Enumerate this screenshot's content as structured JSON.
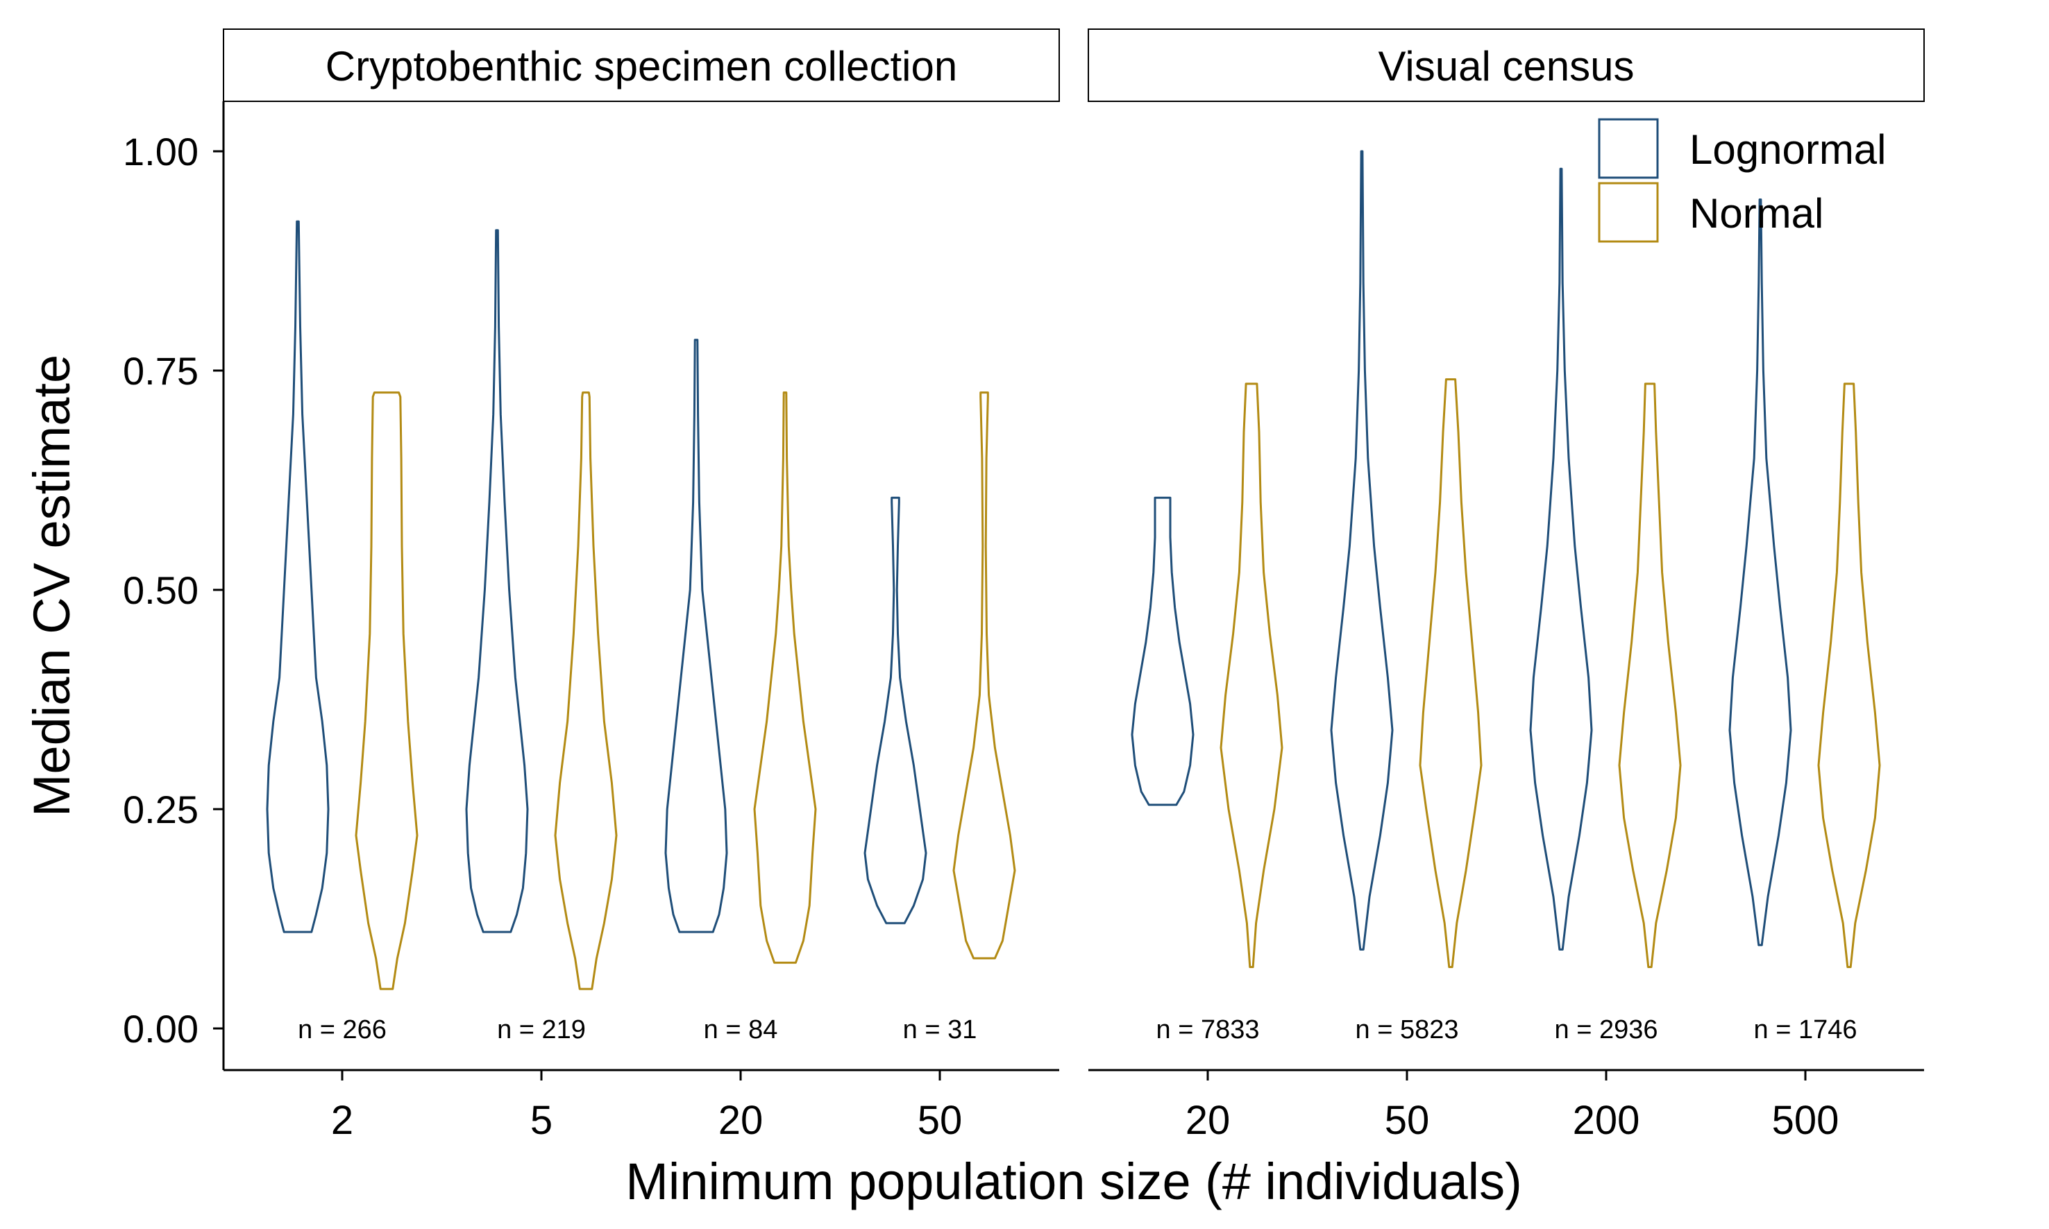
{
  "colors": {
    "lognormal": "#1f4e79",
    "normal": "#b38b14"
  },
  "chart_data": {
    "type": "violin",
    "ylabel": "Median CV estimate",
    "xlabel": "Minimum population size (# individuals)",
    "ylim": [
      0,
      1.05
    ],
    "yticks": [
      "0.00",
      "0.25",
      "0.50",
      "0.75",
      "1.00"
    ],
    "legend": {
      "position": "top-right",
      "entries": [
        "Lognormal",
        "Normal"
      ]
    },
    "grid": false,
    "panels": [
      {
        "title": "Cryptobenthic specimen collection",
        "categories": [
          "2",
          "5",
          "20",
          "50"
        ],
        "n_labels": [
          "n = 266",
          "n = 219",
          "n = 84",
          "n = 31"
        ],
        "violins": [
          {
            "series": "Lognormal",
            "category": "2",
            "min": 0.11,
            "max": 0.92,
            "profile": [
              [
                0.11,
                0.45
              ],
              [
                0.13,
                0.6
              ],
              [
                0.16,
                0.8
              ],
              [
                0.2,
                0.95
              ],
              [
                0.25,
                1.0
              ],
              [
                0.3,
                0.95
              ],
              [
                0.35,
                0.8
              ],
              [
                0.4,
                0.6
              ],
              [
                0.5,
                0.45
              ],
              [
                0.6,
                0.3
              ],
              [
                0.7,
                0.15
              ],
              [
                0.8,
                0.08
              ],
              [
                0.92,
                0.03
              ]
            ]
          },
          {
            "series": "Normal",
            "category": "2",
            "min": 0.045,
            "max": 0.725,
            "profile": [
              [
                0.045,
                0.2
              ],
              [
                0.08,
                0.35
              ],
              [
                0.12,
                0.6
              ],
              [
                0.18,
                0.85
              ],
              [
                0.22,
                1.0
              ],
              [
                0.28,
                0.85
              ],
              [
                0.35,
                0.7
              ],
              [
                0.45,
                0.55
              ],
              [
                0.55,
                0.5
              ],
              [
                0.65,
                0.48
              ],
              [
                0.72,
                0.45
              ],
              [
                0.725,
                0.4
              ]
            ]
          },
          {
            "series": "Lognormal",
            "category": "5",
            "min": 0.11,
            "max": 0.91,
            "profile": [
              [
                0.11,
                0.45
              ],
              [
                0.13,
                0.65
              ],
              [
                0.16,
                0.85
              ],
              [
                0.2,
                0.95
              ],
              [
                0.25,
                1.0
              ],
              [
                0.3,
                0.9
              ],
              [
                0.35,
                0.75
              ],
              [
                0.4,
                0.6
              ],
              [
                0.5,
                0.4
              ],
              [
                0.6,
                0.25
              ],
              [
                0.7,
                0.12
              ],
              [
                0.8,
                0.06
              ],
              [
                0.91,
                0.03
              ]
            ]
          },
          {
            "series": "Normal",
            "category": "5",
            "min": 0.045,
            "max": 0.725,
            "profile": [
              [
                0.045,
                0.2
              ],
              [
                0.08,
                0.35
              ],
              [
                0.12,
                0.6
              ],
              [
                0.17,
                0.85
              ],
              [
                0.22,
                1.0
              ],
              [
                0.28,
                0.85
              ],
              [
                0.35,
                0.6
              ],
              [
                0.45,
                0.4
              ],
              [
                0.55,
                0.25
              ],
              [
                0.65,
                0.15
              ],
              [
                0.72,
                0.12
              ],
              [
                0.725,
                0.1
              ]
            ]
          },
          {
            "series": "Lognormal",
            "category": "20",
            "min": 0.11,
            "max": 0.785,
            "profile": [
              [
                0.11,
                0.55
              ],
              [
                0.13,
                0.75
              ],
              [
                0.16,
                0.9
              ],
              [
                0.2,
                1.0
              ],
              [
                0.25,
                0.95
              ],
              [
                0.3,
                0.8
              ],
              [
                0.35,
                0.65
              ],
              [
                0.4,
                0.5
              ],
              [
                0.45,
                0.35
              ],
              [
                0.5,
                0.2
              ],
              [
                0.6,
                0.1
              ],
              [
                0.7,
                0.06
              ],
              [
                0.785,
                0.04
              ]
            ]
          },
          {
            "series": "Normal",
            "category": "20",
            "min": 0.075,
            "max": 0.725,
            "profile": [
              [
                0.075,
                0.35
              ],
              [
                0.1,
                0.6
              ],
              [
                0.14,
                0.8
              ],
              [
                0.2,
                0.9
              ],
              [
                0.25,
                1.0
              ],
              [
                0.3,
                0.8
              ],
              [
                0.35,
                0.6
              ],
              [
                0.4,
                0.45
              ],
              [
                0.45,
                0.3
              ],
              [
                0.5,
                0.2
              ],
              [
                0.55,
                0.12
              ],
              [
                0.65,
                0.06
              ],
              [
                0.725,
                0.04
              ]
            ]
          },
          {
            "series": "Lognormal",
            "category": "50",
            "min": 0.12,
            "max": 0.605,
            "profile": [
              [
                0.12,
                0.3
              ],
              [
                0.14,
                0.6
              ],
              [
                0.17,
                0.9
              ],
              [
                0.2,
                1.0
              ],
              [
                0.25,
                0.8
              ],
              [
                0.3,
                0.6
              ],
              [
                0.35,
                0.35
              ],
              [
                0.4,
                0.15
              ],
              [
                0.45,
                0.08
              ],
              [
                0.5,
                0.05
              ],
              [
                0.55,
                0.08
              ],
              [
                0.6,
                0.12
              ],
              [
                0.605,
                0.12
              ]
            ]
          },
          {
            "series": "Normal",
            "category": "50",
            "min": 0.08,
            "max": 0.725,
            "profile": [
              [
                0.08,
                0.35
              ],
              [
                0.1,
                0.6
              ],
              [
                0.14,
                0.8
              ],
              [
                0.18,
                1.0
              ],
              [
                0.22,
                0.85
              ],
              [
                0.27,
                0.6
              ],
              [
                0.32,
                0.35
              ],
              [
                0.38,
                0.15
              ],
              [
                0.45,
                0.08
              ],
              [
                0.55,
                0.05
              ],
              [
                0.65,
                0.07
              ],
              [
                0.72,
                0.12
              ],
              [
                0.725,
                0.12
              ]
            ]
          }
        ]
      },
      {
        "title": "Visual census",
        "categories": [
          "20",
          "50",
          "200",
          "500"
        ],
        "n_labels": [
          "n = 7833",
          "n = 5823",
          "n = 2936",
          "n = 1746"
        ],
        "violins": [
          {
            "series": "Lognormal",
            "category": "20",
            "min": 0.255,
            "max": 0.605,
            "profile": [
              [
                0.255,
                0.45
              ],
              [
                0.27,
                0.7
              ],
              [
                0.3,
                0.9
              ],
              [
                0.335,
                1.0
              ],
              [
                0.37,
                0.9
              ],
              [
                0.4,
                0.75
              ],
              [
                0.44,
                0.55
              ],
              [
                0.48,
                0.4
              ],
              [
                0.52,
                0.3
              ],
              [
                0.56,
                0.25
              ],
              [
                0.605,
                0.25
              ]
            ]
          },
          {
            "series": "Normal",
            "category": "20",
            "min": 0.07,
            "max": 0.735,
            "profile": [
              [
                0.07,
                0.05
              ],
              [
                0.12,
                0.15
              ],
              [
                0.18,
                0.4
              ],
              [
                0.25,
                0.75
              ],
              [
                0.32,
                1.0
              ],
              [
                0.38,
                0.85
              ],
              [
                0.45,
                0.6
              ],
              [
                0.52,
                0.4
              ],
              [
                0.6,
                0.3
              ],
              [
                0.68,
                0.25
              ],
              [
                0.735,
                0.18
              ]
            ]
          },
          {
            "series": "Lognormal",
            "category": "50",
            "min": 0.09,
            "max": 1.0,
            "profile": [
              [
                0.09,
                0.05
              ],
              [
                0.15,
                0.25
              ],
              [
                0.22,
                0.6
              ],
              [
                0.28,
                0.85
              ],
              [
                0.34,
                1.0
              ],
              [
                0.4,
                0.85
              ],
              [
                0.48,
                0.6
              ],
              [
                0.55,
                0.4
              ],
              [
                0.65,
                0.2
              ],
              [
                0.75,
                0.1
              ],
              [
                0.85,
                0.05
              ],
              [
                1.0,
                0.02
              ]
            ]
          },
          {
            "series": "Normal",
            "category": "50",
            "min": 0.07,
            "max": 0.74,
            "profile": [
              [
                0.07,
                0.05
              ],
              [
                0.12,
                0.2
              ],
              [
                0.18,
                0.5
              ],
              [
                0.25,
                0.8
              ],
              [
                0.3,
                1.0
              ],
              [
                0.36,
                0.9
              ],
              [
                0.44,
                0.7
              ],
              [
                0.52,
                0.5
              ],
              [
                0.6,
                0.35
              ],
              [
                0.68,
                0.25
              ],
              [
                0.74,
                0.15
              ]
            ]
          },
          {
            "series": "Lognormal",
            "category": "200",
            "min": 0.09,
            "max": 0.98,
            "profile": [
              [
                0.09,
                0.05
              ],
              [
                0.15,
                0.25
              ],
              [
                0.22,
                0.6
              ],
              [
                0.28,
                0.85
              ],
              [
                0.34,
                1.0
              ],
              [
                0.4,
                0.9
              ],
              [
                0.48,
                0.65
              ],
              [
                0.55,
                0.45
              ],
              [
                0.65,
                0.25
              ],
              [
                0.75,
                0.12
              ],
              [
                0.85,
                0.05
              ],
              [
                0.98,
                0.02
              ]
            ]
          },
          {
            "series": "Normal",
            "category": "200",
            "min": 0.07,
            "max": 0.735,
            "profile": [
              [
                0.07,
                0.05
              ],
              [
                0.12,
                0.2
              ],
              [
                0.18,
                0.55
              ],
              [
                0.24,
                0.85
              ],
              [
                0.3,
                1.0
              ],
              [
                0.36,
                0.85
              ],
              [
                0.44,
                0.6
              ],
              [
                0.52,
                0.4
              ],
              [
                0.6,
                0.3
              ],
              [
                0.68,
                0.2
              ],
              [
                0.735,
                0.15
              ]
            ]
          },
          {
            "series": "Lognormal",
            "category": "500",
            "min": 0.095,
            "max": 0.945,
            "profile": [
              [
                0.095,
                0.05
              ],
              [
                0.15,
                0.25
              ],
              [
                0.22,
                0.6
              ],
              [
                0.28,
                0.85
              ],
              [
                0.34,
                1.0
              ],
              [
                0.4,
                0.9
              ],
              [
                0.48,
                0.65
              ],
              [
                0.55,
                0.45
              ],
              [
                0.65,
                0.2
              ],
              [
                0.75,
                0.1
              ],
              [
                0.85,
                0.05
              ],
              [
                0.945,
                0.02
              ]
            ]
          },
          {
            "series": "Normal",
            "category": "500",
            "min": 0.07,
            "max": 0.735,
            "profile": [
              [
                0.07,
                0.05
              ],
              [
                0.12,
                0.2
              ],
              [
                0.18,
                0.55
              ],
              [
                0.24,
                0.85
              ],
              [
                0.3,
                1.0
              ],
              [
                0.36,
                0.85
              ],
              [
                0.44,
                0.6
              ],
              [
                0.52,
                0.4
              ],
              [
                0.6,
                0.3
              ],
              [
                0.68,
                0.22
              ],
              [
                0.735,
                0.15
              ]
            ]
          }
        ]
      }
    ]
  }
}
